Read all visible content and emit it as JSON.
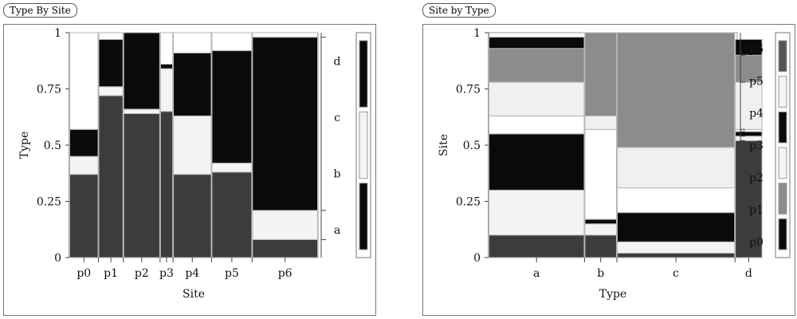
{
  "charts": [
    {
      "panel_title": "Type By Site",
      "chart_data": {
        "type": "mosaic",
        "xlabel": "Site",
        "ylabel": "Type",
        "ylim": [
          0,
          1
        ],
        "yticks": [
          "0",
          "0.25",
          "0.5",
          "0.75",
          "1"
        ],
        "right_labels": [
          "a",
          "b",
          "c",
          "d"
        ],
        "categories": [
          "p0",
          "p1",
          "p2",
          "p3",
          "p4",
          "p5",
          "p6"
        ],
        "x_shares": [
          0.117,
          0.1,
          0.148,
          0.052,
          0.155,
          0.163,
          0.265
        ],
        "series": [
          {
            "name": "a",
            "color": "#3c3c3c",
            "values": [
              0.37,
              0.72,
              0.64,
              0.65,
              0.37,
              0.38,
              0.08
            ]
          },
          {
            "name": "b",
            "color": "#f4f4f4",
            "values": [
              0.08,
              0.04,
              0.02,
              0.19,
              0.26,
              0.04,
              0.13
            ]
          },
          {
            "name": "c",
            "color": "#0a0a0a",
            "values": [
              0.12,
              0.21,
              0.34,
              0.02,
              0.28,
              0.5,
              0.77
            ]
          },
          {
            "name": "d",
            "color": "#ffffff",
            "values": [
              0.43,
              0.03,
              0.0,
              0.14,
              0.09,
              0.08,
              0.02
            ]
          }
        ],
        "legend_swatches": [
          "#0a0a0a",
          "#f4f4f4",
          "#0a0a0a"
        ]
      }
    },
    {
      "panel_title": "Site by Type",
      "chart_data": {
        "type": "mosaic",
        "xlabel": "Type",
        "ylabel": "Site",
        "ylim": [
          0,
          1
        ],
        "yticks": [
          "0",
          "0.25",
          "0.5",
          "0.75",
          "1"
        ],
        "right_labels": [
          "p0",
          "p1",
          "p2",
          "p3",
          "p4",
          "p5",
          "p6"
        ],
        "categories": [
          "a",
          "b",
          "c",
          "d"
        ],
        "x_shares": [
          0.386,
          0.13,
          0.475,
          0.11
        ],
        "series": [
          {
            "name": "p0",
            "color": "#3c3c3c",
            "values": [
              0.1,
              0.1,
              0.02,
              0.52
            ]
          },
          {
            "name": "p1",
            "color": "#f4f4f4",
            "values": [
              0.2,
              0.05,
              0.05,
              0.02
            ]
          },
          {
            "name": "p2",
            "color": "#0a0a0a",
            "values": [
              0.25,
              0.02,
              0.13,
              0.02
            ]
          },
          {
            "name": "p3",
            "color": "#ffffff",
            "values": [
              0.08,
              0.4,
              0.11,
              0.01
            ]
          },
          {
            "name": "p4",
            "color": "#f0f0f0",
            "values": [
              0.15,
              0.06,
              0.18,
              0.21
            ]
          },
          {
            "name": "p5",
            "color": "#8c8c8c",
            "values": [
              0.15,
              0.37,
              0.51,
              0.12
            ]
          },
          {
            "name": "p6",
            "color": "#0a0a0a",
            "values": [
              0.05,
              0.0,
              0.0,
              0.07
            ]
          }
        ],
        "legend_swatches": [
          "#0a0a0a",
          "#8c8c8c",
          "#f4f4f4",
          "#0a0a0a",
          "#f4f4f4",
          "#555555"
        ]
      }
    }
  ]
}
